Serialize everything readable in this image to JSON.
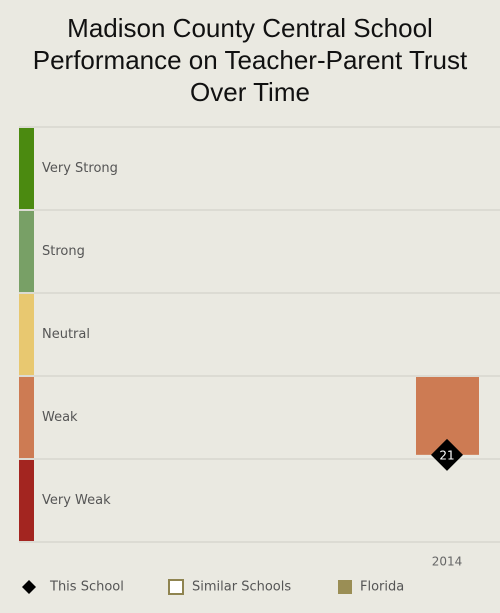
{
  "chart_data": {
    "type": "band",
    "title": "Madison County Central School Performance on Teacher-Parent Trust Over Time",
    "bands": [
      {
        "name": "Very Strong",
        "color": "#4b8a10"
      },
      {
        "name": "Strong",
        "color": "#78a066"
      },
      {
        "name": "Neutral",
        "color": "#e8c870"
      },
      {
        "name": "Weak",
        "color": "#cd7b53"
      },
      {
        "name": "Very Weak",
        "color": "#a32520"
      }
    ],
    "ylim": [
      0,
      100
    ],
    "yticks": [
      0,
      20,
      40,
      60,
      80,
      100
    ],
    "categories": [
      "2014"
    ],
    "series": [
      {
        "name": "This School",
        "color": "#000000",
        "values": [
          21
        ]
      },
      {
        "name": "Similar Schools",
        "color": "#8f8450",
        "values": [
          null
        ]
      },
      {
        "name": "Florida",
        "color": "#9a8e55",
        "values": [
          20
        ]
      }
    ]
  }
}
